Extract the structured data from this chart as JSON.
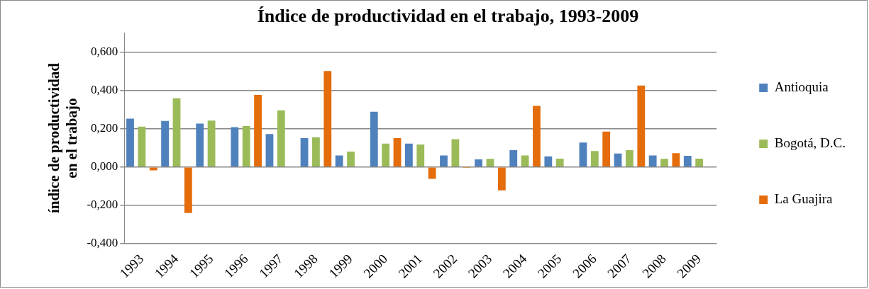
{
  "chart_data": {
    "type": "bar",
    "title": "Índice de productividad en el trabajo, 1993-2009",
    "ylabel": "índice de productividad en el trabajo",
    "categories": [
      "1993",
      "1994",
      "1995",
      "1996",
      "1997",
      "1998",
      "1999",
      "2000",
      "2001",
      "2002",
      "2003",
      "2004",
      "2005",
      "2006",
      "2007",
      "2008",
      "2009"
    ],
    "series": [
      {
        "name": "Antioquia",
        "color": "#4f81bd",
        "values": [
          0.252,
          0.24,
          0.226,
          0.208,
          0.172,
          0.15,
          0.06,
          0.288,
          0.122,
          0.06,
          0.04,
          0.088,
          0.055,
          0.127,
          0.07,
          0.06,
          0.058
        ]
      },
      {
        "name": "Bogotá, D.C.",
        "color": "#9bbb59",
        "values": [
          0.21,
          0.358,
          0.242,
          0.213,
          0.295,
          0.155,
          0.08,
          0.122,
          0.117,
          0.145,
          0.042,
          0.06,
          0.043,
          0.083,
          0.088,
          0.042,
          0.043
        ]
      },
      {
        "name": "La Guajira",
        "color": "#e46c0a",
        "values": [
          -0.018,
          -0.24,
          null,
          0.376,
          null,
          0.5,
          null,
          0.15,
          -0.062,
          -0.005,
          -0.122,
          0.318,
          null,
          0.185,
          0.425,
          0.072,
          null
        ]
      }
    ],
    "ylim": [
      -0.4,
      0.7
    ],
    "yticks": [
      {
        "value": -0.4,
        "label": "-0,400"
      },
      {
        "value": -0.2,
        "label": "-0,200"
      },
      {
        "value": 0,
        "label": "0,000"
      },
      {
        "value": 0.2,
        "label": "0,200"
      },
      {
        "value": 0.4,
        "label": "0,400"
      },
      {
        "value": 0.6,
        "label": "0,600"
      }
    ],
    "grid": "y",
    "legend": "right"
  }
}
